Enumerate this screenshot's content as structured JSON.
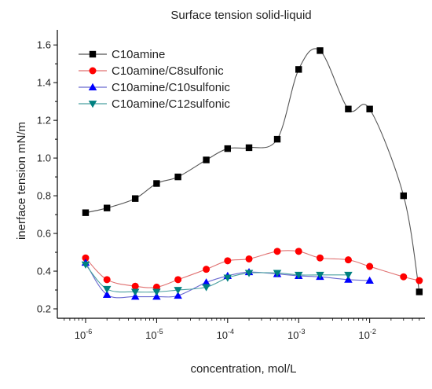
{
  "chart_data": {
    "type": "scatter",
    "title": "Surface tension solid-liquid",
    "xlabel": "concentration, mol/L",
    "ylabel": "inerface tension mN/m",
    "xscale": "log",
    "xlim": [
      4e-07,
      0.06
    ],
    "ylim": [
      0.15,
      1.68
    ],
    "yticks": [
      0.2,
      0.4,
      0.6,
      0.8,
      1.0,
      1.2,
      1.4,
      1.6
    ],
    "ytick_labels": [
      "0.2",
      "0.4",
      "0.6",
      "0.8",
      "1.0",
      "1.2",
      "1.4",
      "1.6"
    ],
    "xticks": [
      1e-06,
      1e-05,
      0.0001,
      0.001,
      0.01
    ],
    "xtick_labels": [
      {
        "base": "10",
        "exp": "-6"
      },
      {
        "base": "10",
        "exp": "-5"
      },
      {
        "base": "10",
        "exp": "-4"
      },
      {
        "base": "10",
        "exp": "-3"
      },
      {
        "base": "10",
        "exp": "-2"
      }
    ],
    "legend_position": "top-left",
    "grid": false,
    "series": [
      {
        "name": "C10amine",
        "marker": "square",
        "color": "#000000",
        "line_color": "#555555",
        "x": [
          1e-06,
          2e-06,
          5e-06,
          1e-05,
          2e-05,
          5e-05,
          0.0001,
          0.0002,
          0.0005,
          0.001,
          0.002,
          0.005,
          0.01,
          0.03,
          0.05
        ],
        "y": [
          0.71,
          0.735,
          0.785,
          0.865,
          0.9,
          0.99,
          1.05,
          1.055,
          1.1,
          1.47,
          1.57,
          1.26,
          1.26,
          0.8,
          0.29
        ]
      },
      {
        "name": "C10amine/C8sulfonic",
        "marker": "circle",
        "color": "#ff0000",
        "line_color": "#e07070",
        "x": [
          1e-06,
          2e-06,
          5e-06,
          1e-05,
          2e-05,
          5e-05,
          0.0001,
          0.0002,
          0.0005,
          0.001,
          0.002,
          0.005,
          0.01,
          0.03,
          0.05
        ],
        "y": [
          0.47,
          0.355,
          0.32,
          0.315,
          0.355,
          0.41,
          0.455,
          0.465,
          0.505,
          0.505,
          0.47,
          0.46,
          0.425,
          0.37,
          0.35
        ]
      },
      {
        "name": "C10amine/C10sulfonic",
        "marker": "triangle-up",
        "color": "#0000ff",
        "line_color": "#6a6ad0",
        "x": [
          1e-06,
          2e-06,
          5e-06,
          1e-05,
          2e-05,
          5e-05,
          0.0001,
          0.0002,
          0.0005,
          0.001,
          0.002,
          0.005,
          0.01
        ],
        "y": [
          0.445,
          0.275,
          0.265,
          0.265,
          0.27,
          0.34,
          0.375,
          0.395,
          0.385,
          0.375,
          0.37,
          0.355,
          0.35
        ]
      },
      {
        "name": "C10amine/C12sulfonic",
        "marker": "triangle-down",
        "color": "#008080",
        "line_color": "#4aa0a0",
        "x": [
          1e-06,
          2e-06,
          5e-06,
          1e-05,
          2e-05,
          5e-05,
          0.0001,
          0.0002,
          0.0005,
          0.001,
          0.002,
          0.005
        ],
        "y": [
          0.435,
          0.305,
          0.29,
          0.29,
          0.3,
          0.315,
          0.365,
          0.39,
          0.39,
          0.38,
          0.38,
          0.38
        ]
      }
    ]
  }
}
